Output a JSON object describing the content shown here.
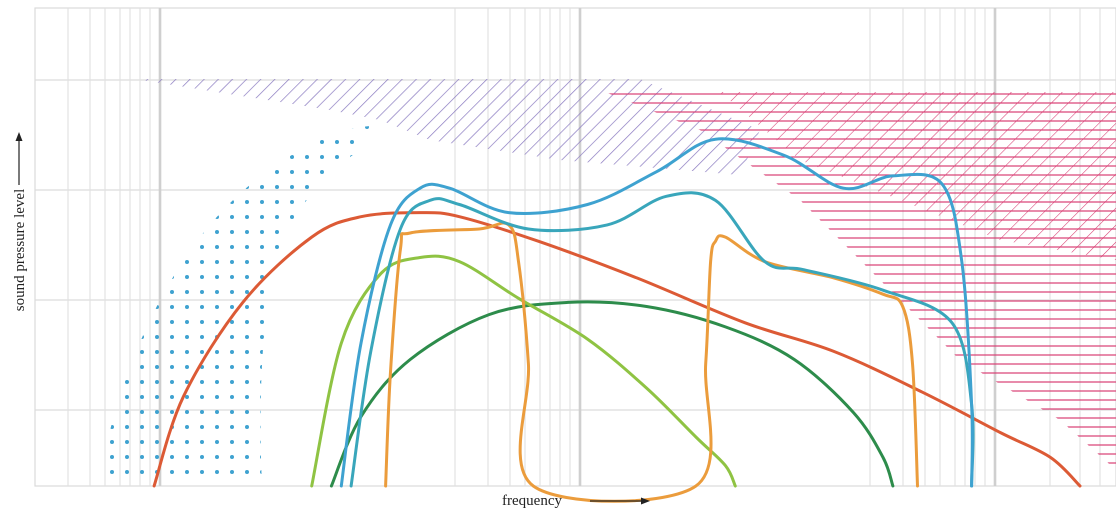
{
  "chart_data": {
    "type": "line",
    "title": "",
    "xlabel": "frequency",
    "ylabel": "sound pressure level",
    "x_scale": "log",
    "grid": true,
    "legend": "none",
    "xlim": [
      0,
      1
    ],
    "ylim": [
      0,
      1
    ],
    "series": [
      {
        "color": "#dc5a35",
        "x": [
          0.06,
          0.09,
          0.15,
          0.22,
          0.27,
          0.33,
          0.37,
          0.45,
          0.55,
          0.66,
          0.75,
          0.84,
          0.92,
          0.97,
          1.0
        ],
        "y": [
          0.0,
          0.22,
          0.45,
          0.61,
          0.66,
          0.67,
          0.66,
          0.6,
          0.51,
          0.4,
          0.33,
          0.23,
          0.13,
          0.07,
          0.0
        ]
      },
      {
        "color": "#3ea2d0",
        "x": [
          0.25,
          0.27,
          0.3,
          0.33,
          0.36,
          0.42,
          0.5,
          0.57,
          0.63,
          0.7,
          0.76,
          0.81,
          0.86,
          0.88,
          0.89,
          0.89
        ],
        "y": [
          0.0,
          0.35,
          0.64,
          0.73,
          0.73,
          0.67,
          0.69,
          0.77,
          0.85,
          0.81,
          0.73,
          0.76,
          0.74,
          0.55,
          0.2,
          0.0
        ]
      },
      {
        "color": "#39a6bb",
        "x": [
          0.26,
          0.28,
          0.31,
          0.34,
          0.37,
          0.44,
          0.52,
          0.58,
          0.63,
          0.68,
          0.72,
          0.8,
          0.87,
          0.89,
          0.89
        ],
        "y": [
          0.0,
          0.33,
          0.63,
          0.7,
          0.69,
          0.63,
          0.64,
          0.71,
          0.7,
          0.55,
          0.53,
          0.48,
          0.4,
          0.2,
          0.0
        ]
      },
      {
        "color": "#eb9c3c",
        "x": [
          0.295,
          0.3,
          0.31,
          0.32,
          0.39,
          0.42,
          0.43,
          0.44,
          0.445,
          0.61,
          0.62,
          0.625,
          0.63,
          0.64,
          0.68,
          0.75,
          0.8,
          0.82,
          0.83,
          0.835
        ],
        "y": [
          0.0,
          0.28,
          0.58,
          0.62,
          0.63,
          0.64,
          0.55,
          0.3,
          0.0,
          0.0,
          0.3,
          0.55,
          0.6,
          0.61,
          0.55,
          0.51,
          0.47,
          0.44,
          0.3,
          0.0
        ]
      },
      {
        "color": "#8fc343",
        "x": [
          0.22,
          0.25,
          0.29,
          0.33,
          0.37,
          0.43,
          0.5,
          0.56,
          0.61,
          0.64,
          0.65
        ],
        "y": [
          0.0,
          0.35,
          0.52,
          0.56,
          0.55,
          0.46,
          0.36,
          0.24,
          0.12,
          0.05,
          0.0
        ]
      },
      {
        "color": "#2d8c4b",
        "x": [
          0.24,
          0.27,
          0.32,
          0.4,
          0.48,
          0.56,
          0.64,
          0.71,
          0.77,
          0.8,
          0.81
        ],
        "y": [
          0.0,
          0.17,
          0.31,
          0.42,
          0.45,
          0.44,
          0.39,
          0.31,
          0.18,
          0.07,
          0.0
        ]
      }
    ],
    "regions": [
      {
        "pattern": "dots",
        "color": "#3ea2d0"
      },
      {
        "pattern": "diagonal-hatch",
        "color": "#8a7ac0"
      },
      {
        "pattern": "cross-hatch",
        "color": "#d83d72"
      }
    ]
  }
}
